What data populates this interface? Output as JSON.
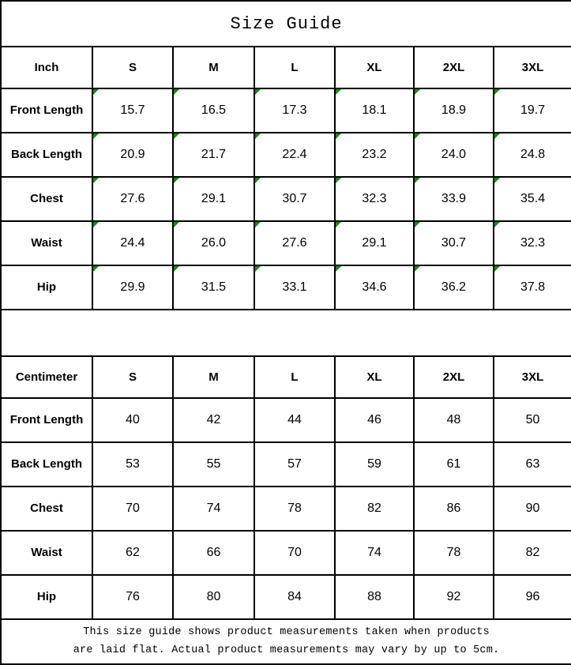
{
  "title": "Size Guide",
  "colors": {
    "border_black": "#000000",
    "background": "#ffffff",
    "marker_green": "#168a16"
  },
  "inch_table": {
    "unit_label": "Inch",
    "size_headers": [
      "S",
      "M",
      "L",
      "XL",
      "2XL",
      "3XL"
    ],
    "has_corner_markers": true,
    "rows": [
      {
        "label": "Front Length",
        "values": [
          "15.7",
          "16.5",
          "17.3",
          "18.1",
          "18.9",
          "19.7"
        ]
      },
      {
        "label": "Back Length",
        "values": [
          "20.9",
          "21.7",
          "22.4",
          "23.2",
          "24.0",
          "24.8"
        ]
      },
      {
        "label": "Chest",
        "values": [
          "27.6",
          "29.1",
          "30.7",
          "32.3",
          "33.9",
          "35.4"
        ]
      },
      {
        "label": "Waist",
        "values": [
          "24.4",
          "26.0",
          "27.6",
          "29.1",
          "30.7",
          "32.3"
        ]
      },
      {
        "label": "Hip",
        "values": [
          "29.9",
          "31.5",
          "33.1",
          "34.6",
          "36.2",
          "37.8"
        ]
      }
    ]
  },
  "cm_table": {
    "unit_label": "Centimeter",
    "size_headers": [
      "S",
      "M",
      "L",
      "XL",
      "2XL",
      "3XL"
    ],
    "has_corner_markers": false,
    "rows": [
      {
        "label": "Front Length",
        "values": [
          "40",
          "42",
          "44",
          "46",
          "48",
          "50"
        ]
      },
      {
        "label": "Back Length",
        "values": [
          "53",
          "55",
          "57",
          "59",
          "61",
          "63"
        ]
      },
      {
        "label": "Chest",
        "values": [
          "70",
          "74",
          "78",
          "82",
          "86",
          "90"
        ]
      },
      {
        "label": "Waist",
        "values": [
          "62",
          "66",
          "70",
          "74",
          "78",
          "82"
        ]
      },
      {
        "label": "Hip",
        "values": [
          "76",
          "80",
          "84",
          "88",
          "92",
          "96"
        ]
      }
    ]
  },
  "footer": {
    "line1": "This size guide shows product measurements taken when products",
    "line2": "are laid flat. Actual product measurements may vary by up to 5cm."
  }
}
